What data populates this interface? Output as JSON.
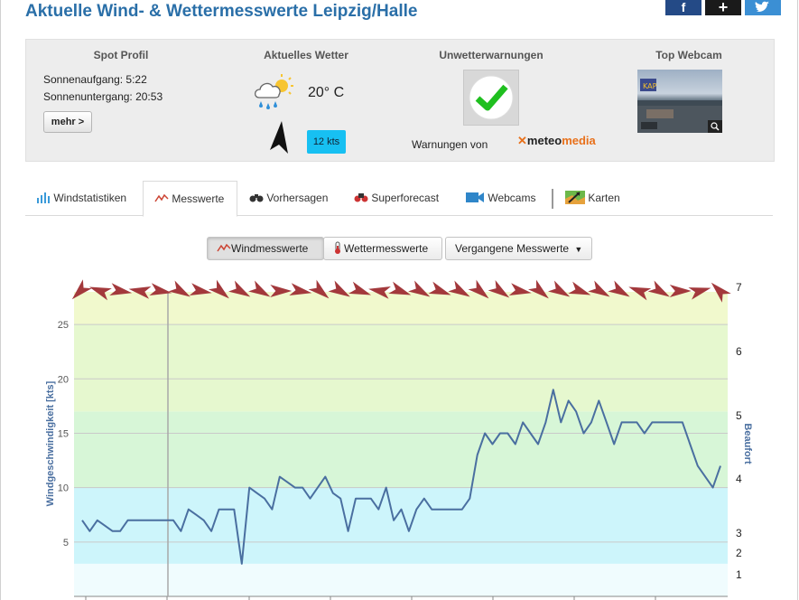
{
  "page": {
    "title": "Aktuelle Wind- & Wettermesswerte Leipzig/Halle"
  },
  "share": {
    "facebook": "f",
    "plus": "+",
    "twitter": "t"
  },
  "spot_profile": {
    "heading": "Spot Profil",
    "sunrise": "Sonnenaufgang: 5:22",
    "sunset": "Sonnenuntergang: 20:53",
    "more_label": "mehr >"
  },
  "current_weather": {
    "heading": "Aktuelles Wetter",
    "temperature": "20° C",
    "wind_speed": "12 kts",
    "icon": "cloud-rain-sun-icon"
  },
  "storm_warnings": {
    "heading": "Unwetterwarnungen",
    "status_icon": "checkmark-icon",
    "provider_text": "Warnungen von",
    "provider_name_dark": "meteo",
    "provider_name_orange": "media"
  },
  "top_webcam": {
    "heading": "Top Webcam"
  },
  "tabs": [
    {
      "label": "Windstatistiken",
      "icon": "bar-chart-icon",
      "active": false
    },
    {
      "label": "Messwerte",
      "icon": "line-chart-icon",
      "active": true
    },
    {
      "label": "Vorhersagen",
      "icon": "binoculars-icon",
      "active": false
    },
    {
      "label": "Superforecast",
      "icon": "superforecast-icon",
      "active": false
    },
    {
      "label": "Webcams",
      "icon": "video-camera-icon",
      "active": false
    },
    {
      "label": "Karten",
      "icon": "map-icon",
      "active": false
    }
  ],
  "sub_tabs": {
    "wind": "Windmesswerte",
    "weather": "Wettermesswerte",
    "past": "Vergangene Messwerte"
  },
  "colors": {
    "title": "#2a6fa8",
    "line": "#4a6fa0",
    "arrow": "#a3393c",
    "kts_badge": "#17c0f2",
    "check": "#1fbf1f"
  },
  "chart_data": {
    "type": "line",
    "ylabel": "Windgeschwindigkeit [kts]",
    "y2label": "Beaufort",
    "ylim": [
      0,
      28
    ],
    "y_ticks": [
      "5",
      "10",
      "15",
      "20",
      "25"
    ],
    "beaufort_ticks": [
      {
        "label": "1",
        "kts": 2
      },
      {
        "label": "2",
        "kts": 4
      },
      {
        "label": "3",
        "kts": 5.8
      },
      {
        "label": "4",
        "kts": 10.8
      },
      {
        "label": "5",
        "kts": 16.6
      },
      {
        "label": "6",
        "kts": 22.5
      },
      {
        "label": "7",
        "kts": 28.4
      }
    ],
    "bands": [
      {
        "from": 0,
        "to": 3,
        "color": "#f0fcfe"
      },
      {
        "from": 3,
        "to": 10,
        "color": "#cdf5fb"
      },
      {
        "from": 10,
        "to": 17,
        "color": "#d7f6d7"
      },
      {
        "from": 17,
        "to": 25,
        "color": "#e6f8cf"
      },
      {
        "from": 25,
        "to": 28,
        "color": "#f1f9cd"
      }
    ],
    "series": [
      {
        "values": [
          7,
          6,
          7,
          6.5,
          6,
          6,
          7,
          7,
          7,
          7,
          7,
          7,
          7,
          6,
          8,
          7.5,
          7,
          6,
          8,
          8,
          8,
          3,
          10,
          9.5,
          9,
          8,
          11,
          10.5,
          10,
          10,
          9,
          10,
          11,
          9.5,
          9,
          6,
          9,
          9,
          9,
          8,
          10,
          7,
          8,
          6,
          8,
          9,
          8,
          8,
          8,
          8,
          8,
          9,
          13,
          15,
          14,
          15,
          15,
          14,
          16,
          15,
          14,
          16,
          19,
          16,
          18,
          17,
          15,
          16,
          18,
          16,
          14,
          16,
          16,
          16,
          15,
          16,
          16,
          16,
          16,
          16,
          14,
          12,
          11,
          10,
          12
        ]
      }
    ],
    "wind_directions_deg": [
      45,
      110,
      280,
      100,
      280,
      300,
      280,
      310,
      300,
      300,
      270,
      280,
      310,
      300,
      290,
      100,
      290,
      300,
      290,
      300,
      310,
      305,
      280,
      310,
      300,
      290,
      300,
      300,
      110,
      300,
      270,
      255,
      135
    ]
  }
}
